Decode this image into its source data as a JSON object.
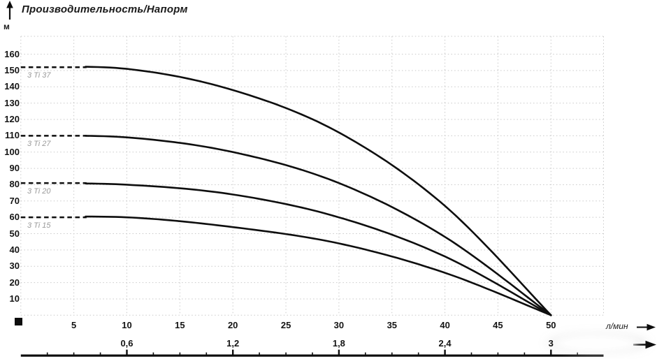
{
  "header": {
    "title": "Производительность/Напорм"
  },
  "colors": {
    "curve": "#0e0e0e",
    "grid": "#c9c9c9",
    "text": "#141414",
    "curve_label": "#9a9a9a",
    "axis2_line": "#0d0d0d"
  },
  "icons": {
    "up_arrow": "up-arrow",
    "flow_axis_arrow": "right-arrow",
    "secondary_axis_arrow": "right-arrow"
  },
  "chart_data": {
    "type": "line",
    "title": "Производительность/Напорм",
    "xlabel": "л/мин",
    "ylabel": "м",
    "xlim": [
      0,
      55
    ],
    "ylim": [
      0,
      171
    ],
    "grid": true,
    "grid_style": "dotted",
    "legend_position": "inline-left-of-curves",
    "x_ticks": [
      5,
      10,
      15,
      20,
      25,
      30,
      35,
      40,
      45,
      50
    ],
    "y_ticks_top_to_bottom": [
      "160",
      "150",
      "140",
      "130",
      "120",
      "110",
      "100",
      "90",
      "80",
      "70",
      "60",
      "50",
      "40",
      "30",
      "20",
      "10"
    ],
    "x2_tick_labels": [
      "0,6",
      "1,2",
      "1,8",
      "2,4",
      "3"
    ],
    "x2_tick_positions_lmin": [
      10,
      20,
      30,
      40,
      50
    ],
    "x2_minor_tick_step_lmin": 2.5,
    "dashed_segment_flow_range_lmin": [
      0,
      6.2
    ],
    "curve_model": "H(Q) ≈ H0·(1−(Q/50)^2.6), all curves converge at Q=50, H=0",
    "series": [
      {
        "name": "3 Ti 37",
        "shutoff_head_m": 152,
        "max_flow_lmin": 50,
        "flow_lmin": [
          0,
          10,
          20,
          30,
          40,
          50
        ],
        "head_m": [
          152,
          151,
          138,
          112,
          67,
          0
        ]
      },
      {
        "name": "3 Ti 27",
        "shutoff_head_m": 110,
        "max_flow_lmin": 50,
        "flow_lmin": [
          0,
          10,
          20,
          30,
          40,
          50
        ],
        "head_m": [
          110,
          109,
          100,
          81,
          48,
          0
        ]
      },
      {
        "name": "3 Ti 20",
        "shutoff_head_m": 81,
        "max_flow_lmin": 50,
        "flow_lmin": [
          0,
          10,
          20,
          30,
          40,
          50
        ],
        "head_m": [
          81,
          80,
          74,
          60,
          36,
          0
        ]
      },
      {
        "name": "3 Ti 15",
        "shutoff_head_m": 60,
        "max_flow_lmin": 50,
        "flow_lmin": [
          0,
          10,
          20,
          30,
          40,
          50
        ],
        "head_m": [
          60,
          60,
          54,
          44,
          26,
          0
        ]
      }
    ]
  }
}
